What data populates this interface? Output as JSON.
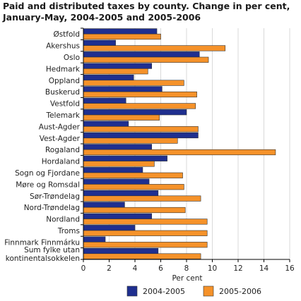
{
  "chart_data": {
    "type": "bar",
    "orientation": "horizontal",
    "title": "Paid and distributed taxes by county. Change in per cent, January-May, 2004-2005 and 2005-2006",
    "xlabel": "Per cent",
    "ylabel": "",
    "xlim": [
      0,
      16
    ],
    "xticks": [
      0,
      2,
      4,
      6,
      8,
      10,
      12,
      14,
      16
    ],
    "grid": "vertical",
    "legend": "bottom",
    "categories": [
      "Østfold",
      "Akershus",
      "Oslo",
      "Hedmark",
      "Oppland",
      "Buskerud",
      "Vestfold",
      "Telemark",
      "Aust-Agder",
      "Vest-Agder",
      "Rogaland",
      "Hordaland",
      "Sogn og Fjordane",
      "Møre og Romsdal",
      "Sør-Trøndelag",
      "Nord-Trøndelag",
      "Nordland",
      "Troms",
      "Finnmark Finnmárku",
      [
        "Sum fylke utan",
        "kontinentalsokkelen"
      ]
    ],
    "series": [
      {
        "name": "2004-2005",
        "color": "#1f2f8f",
        "values": [
          5.7,
          2.5,
          9.0,
          5.3,
          3.9,
          6.1,
          3.3,
          8.0,
          3.5,
          8.9,
          5.3,
          6.5,
          4.6,
          5.1,
          5.8,
          3.2,
          5.3,
          4.0,
          1.7,
          5.8
        ]
      },
      {
        "name": "2005-2006",
        "color": "#f5922a",
        "values": [
          6.0,
          11.0,
          9.7,
          5.0,
          7.8,
          8.8,
          8.7,
          5.9,
          8.9,
          7.3,
          14.9,
          5.5,
          7.7,
          7.8,
          9.1,
          7.9,
          9.6,
          9.6,
          9.6,
          9.1
        ]
      }
    ]
  }
}
